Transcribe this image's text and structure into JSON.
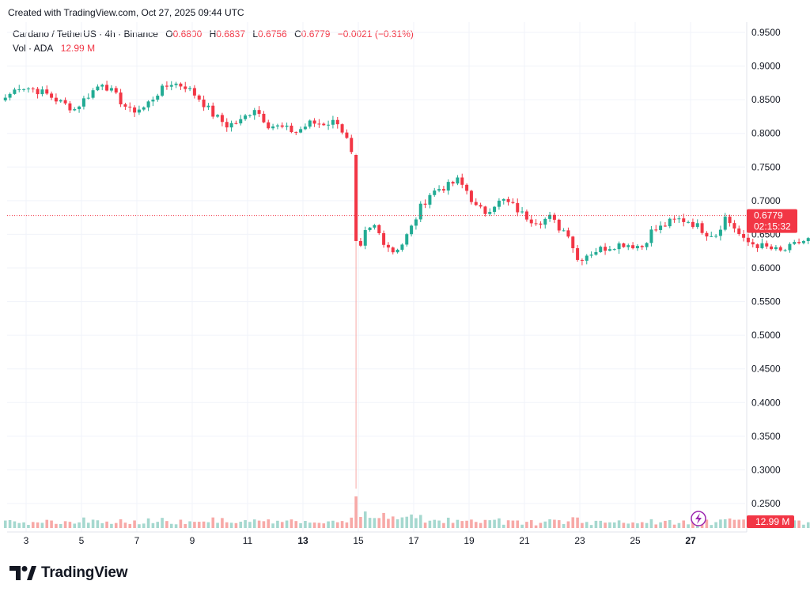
{
  "header": {
    "created_text": "Created with TradingView.com, Oct 27, 2025 09:44 UTC"
  },
  "legend": {
    "symbol": "Cardano / TetherUS · 4h · Binance",
    "o_label": "O",
    "o_value": "0.6800",
    "h_label": "H",
    "h_value": "0.6837",
    "l_label": "L",
    "l_value": "0.6756",
    "c_label": "C",
    "c_value": "0.6779",
    "change": "−0.0021 (−0.31%)",
    "vol_label": "Vol · ADA",
    "vol_value": "12.99 M"
  },
  "price_tag": {
    "price": "0.6779",
    "countdown": "02:15:32"
  },
  "volume_tag": "12.99 M",
  "footer": {
    "brand": "TradingView"
  },
  "colors": {
    "up": "#22ab94",
    "down": "#f23645",
    "vol_up": "#a5d8cf",
    "vol_down": "#f7a9a7",
    "grid": "#f0f3fa",
    "text": "#131722"
  },
  "icons": {
    "lightning": "lightning-icon",
    "logo": "tradingview-logo-icon"
  },
  "chart_data": {
    "type": "candlestick",
    "y_axis": {
      "min": 0.25,
      "max": 0.95,
      "ticks": [
        "0.9500",
        "0.9000",
        "0.8500",
        "0.8000",
        "0.7500",
        "0.7000",
        "0.6500",
        "0.6000",
        "0.5500",
        "0.5000",
        "0.4500",
        "0.4000",
        "0.3500",
        "0.3000",
        "0.2500"
      ]
    },
    "x_axis": {
      "labels": [
        {
          "text": "3",
          "day": 3
        },
        {
          "text": "5",
          "day": 5
        },
        {
          "text": "7",
          "day": 7
        },
        {
          "text": "9",
          "day": 9
        },
        {
          "text": "11",
          "day": 11
        },
        {
          "text": "13",
          "day": 13,
          "bold": true
        },
        {
          "text": "15",
          "day": 15
        },
        {
          "text": "17",
          "day": 17
        },
        {
          "text": "19",
          "day": 19
        },
        {
          "text": "21",
          "day": 21
        },
        {
          "text": "23",
          "day": 23
        },
        {
          "text": "25",
          "day": 25
        },
        {
          "text": "27",
          "day": 27,
          "bold": true
        }
      ],
      "start_day": 2.25,
      "candles_per_day": 6
    },
    "current_price": 0.6779,
    "anchors": [
      [
        0,
        0.853
      ],
      [
        3,
        0.87
      ],
      [
        6,
        0.866
      ],
      [
        9,
        0.858
      ],
      [
        12,
        0.846
      ],
      [
        15,
        0.836
      ],
      [
        18,
        0.857
      ],
      [
        21,
        0.876
      ],
      [
        24,
        0.855
      ],
      [
        27,
        0.833
      ],
      [
        30,
        0.838
      ],
      [
        33,
        0.86
      ],
      [
        36,
        0.875
      ],
      [
        39,
        0.87
      ],
      [
        42,
        0.852
      ],
      [
        45,
        0.828
      ],
      [
        48,
        0.812
      ],
      [
        51,
        0.818
      ],
      [
        54,
        0.838
      ],
      [
        57,
        0.813
      ],
      [
        60,
        0.808
      ],
      [
        63,
        0.802
      ],
      [
        66,
        0.815
      ],
      [
        69,
        0.815
      ],
      [
        72,
        0.818
      ],
      [
        74,
        0.79
      ],
      [
        75,
        0.768
      ],
      [
        76,
        0.64
      ],
      [
        77,
        0.628
      ],
      [
        78,
        0.652
      ],
      [
        80,
        0.662
      ],
      [
        82,
        0.64
      ],
      [
        84,
        0.625
      ],
      [
        86,
        0.636
      ],
      [
        88,
        0.66
      ],
      [
        90,
        0.69
      ],
      [
        92,
        0.71
      ],
      [
        94,
        0.718
      ],
      [
        96,
        0.722
      ],
      [
        98,
        0.73
      ],
      [
        100,
        0.715
      ],
      [
        102,
        0.69
      ],
      [
        104,
        0.683
      ],
      [
        106,
        0.695
      ],
      [
        108,
        0.7
      ],
      [
        110,
        0.692
      ],
      [
        112,
        0.68
      ],
      [
        114,
        0.672
      ],
      [
        116,
        0.67
      ],
      [
        118,
        0.675
      ],
      [
        120,
        0.66
      ],
      [
        122,
        0.652
      ],
      [
        124,
        0.612
      ],
      [
        126,
        0.62
      ],
      [
        128,
        0.626
      ],
      [
        130,
        0.63
      ],
      [
        132,
        0.634
      ],
      [
        134,
        0.636
      ],
      [
        136,
        0.634
      ],
      [
        138,
        0.632
      ],
      [
        140,
        0.654
      ],
      [
        142,
        0.66
      ],
      [
        144,
        0.668
      ],
      [
        146,
        0.672
      ],
      [
        148,
        0.67
      ],
      [
        150,
        0.662
      ],
      [
        152,
        0.652
      ],
      [
        154,
        0.65
      ],
      [
        156,
        0.675
      ],
      [
        158,
        0.66
      ],
      [
        160,
        0.64
      ],
      [
        162,
        0.636
      ],
      [
        164,
        0.632
      ],
      [
        166,
        0.628
      ],
      [
        168,
        0.624
      ],
      [
        170,
        0.63
      ],
      [
        172,
        0.638
      ],
      [
        174,
        0.642
      ],
      [
        176,
        0.648
      ],
      [
        178,
        0.65
      ],
      [
        180,
        0.656
      ],
      [
        182,
        0.654
      ],
      [
        184,
        0.656
      ],
      [
        186,
        0.656
      ],
      [
        188,
        0.66
      ],
      [
        190,
        0.655
      ],
      [
        192,
        0.67
      ],
      [
        194,
        0.676
      ],
      [
        196,
        0.68
      ],
      [
        198,
        0.684
      ],
      [
        199,
        0.6779
      ]
    ],
    "flash_crash": {
      "candle": 76,
      "open": 0.768,
      "high": 0.77,
      "low": 0.272,
      "close": 0.64
    },
    "volume": {
      "max_label": "12.99 M",
      "spike_index": 76
    }
  }
}
